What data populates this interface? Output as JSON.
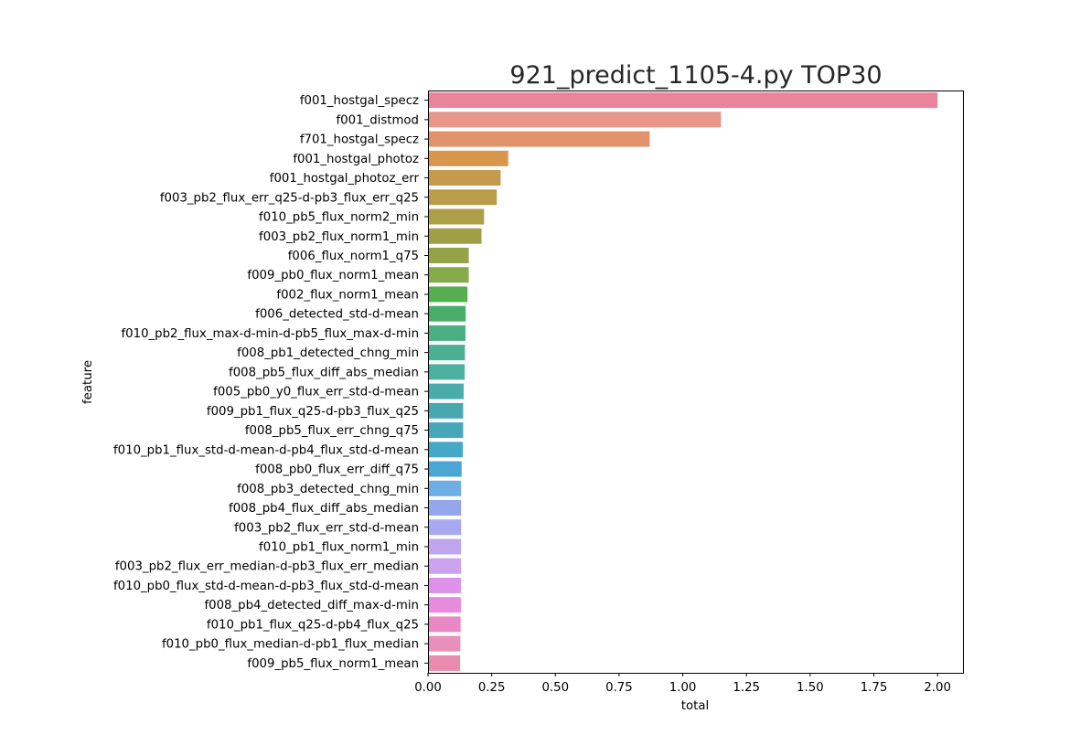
{
  "chart_data": {
    "type": "bar",
    "orientation": "horizontal",
    "title": "921_predict_1105-4.py TOP30",
    "xlabel": "total",
    "ylabel": "feature",
    "xlim": [
      0,
      2.1
    ],
    "xticks": [
      "0.00",
      "0.25",
      "0.50",
      "0.75",
      "1.00",
      "1.25",
      "1.50",
      "1.75",
      "2.00"
    ],
    "grid": false,
    "categories": [
      "f001_hostgal_specz",
      "f001_distmod",
      "f701_hostgal_specz",
      "f001_hostgal_photoz",
      "f001_hostgal_photoz_err",
      "f003_pb2_flux_err_q25-d-pb3_flux_err_q25",
      "f010_pb5_flux_norm2_min",
      "f003_pb2_flux_norm1_min",
      "f006_flux_norm1_q75",
      "f009_pb0_flux_norm1_mean",
      "f002_flux_norm1_mean",
      "f006_detected_std-d-mean",
      "f010_pb2_flux_max-d-min-d-pb5_flux_max-d-min",
      "f008_pb1_detected_chng_min",
      "f008_pb5_flux_diff_abs_median",
      "f005_pb0_y0_flux_err_std-d-mean",
      "f009_pb1_flux_q25-d-pb3_flux_q25",
      "f008_pb5_flux_err_chng_q75",
      "f010_pb1_flux_std-d-mean-d-pb4_flux_std-d-mean",
      "f008_pb0_flux_err_diff_q75",
      "f008_pb3_detected_chng_min",
      "f008_pb4_flux_diff_abs_median",
      "f003_pb2_flux_err_std-d-mean",
      "f010_pb1_flux_norm1_min",
      "f003_pb2_flux_err_median-d-pb3_flux_err_median",
      "f010_pb0_flux_std-d-mean-d-pb3_flux_std-d-mean",
      "f008_pb4_detected_diff_max-d-min",
      "f010_pb1_flux_q25-d-pb4_flux_q25",
      "f010_pb0_flux_median-d-pb1_flux_median",
      "f009_pb5_flux_norm1_mean"
    ],
    "values": [
      2.0,
      1.15,
      0.87,
      0.315,
      0.285,
      0.27,
      0.22,
      0.21,
      0.16,
      0.16,
      0.155,
      0.148,
      0.147,
      0.145,
      0.144,
      0.14,
      0.138,
      0.138,
      0.137,
      0.132,
      0.13,
      0.13,
      0.13,
      0.13,
      0.13,
      0.129,
      0.129,
      0.128,
      0.127,
      0.126
    ],
    "colors": [
      "#e8849b",
      "#e8958a",
      "#e2926a",
      "#d8954c",
      "#c69a4c",
      "#b99d4a",
      "#ad9f48",
      "#a09f46",
      "#93a345",
      "#86ab4b",
      "#55ae4f",
      "#48ad68",
      "#4aaf82",
      "#4baf92",
      "#4db09f",
      "#4aabac",
      "#48a8b0",
      "#45a7b8",
      "#45a8c6",
      "#4ba6d4",
      "#6eaee4",
      "#94a6ec",
      "#a8a8f0",
      "#bfa6ee",
      "#cba2ee",
      "#de91ea",
      "#e68bde",
      "#ea88c6",
      "#e890ba",
      "#e88bac"
    ]
  }
}
